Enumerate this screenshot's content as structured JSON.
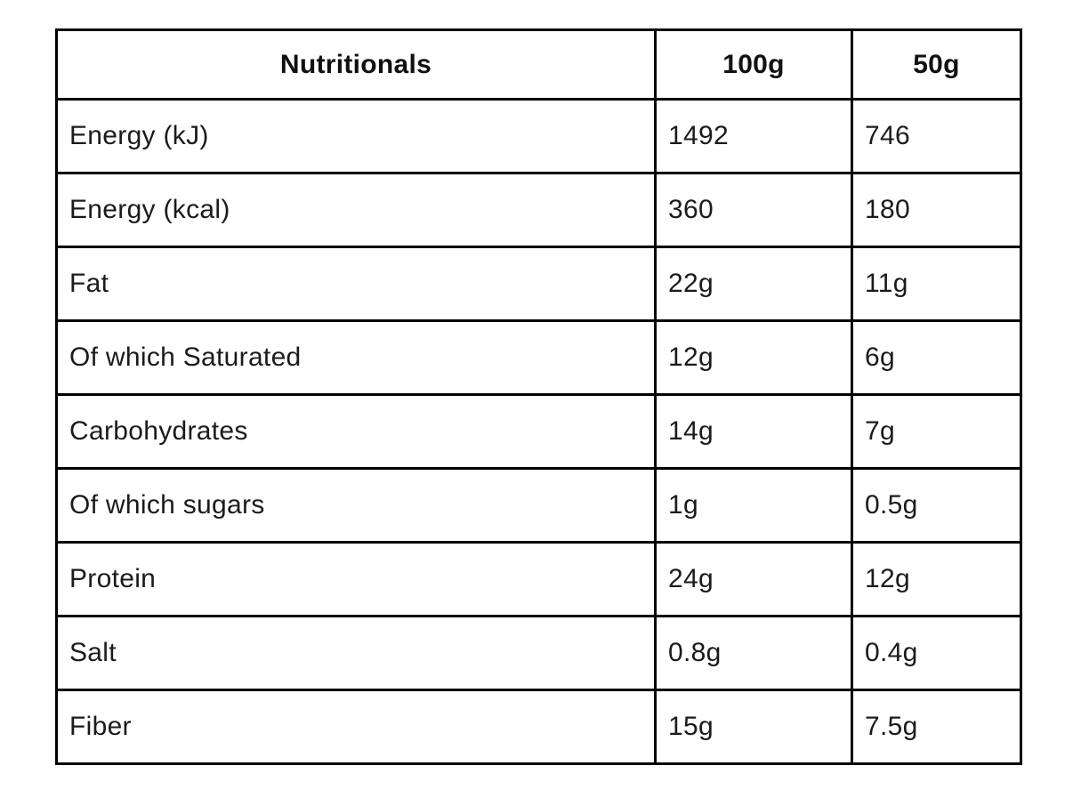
{
  "table": {
    "title": "Nutritionals",
    "columns": {
      "label": "Nutritionals",
      "per100g": "100g",
      "per50g": "50g"
    },
    "rows": [
      {
        "label": "Energy (kJ)",
        "per100g": "1492",
        "per50g": "746"
      },
      {
        "label": "Energy (kcal)",
        "per100g": "360",
        "per50g": "180"
      },
      {
        "label": "Fat",
        "per100g": "22g",
        "per50g": "11g"
      },
      {
        "label": "Of which Saturated",
        "per100g": "12g",
        "per50g": "6g"
      },
      {
        "label": "Carbohydrates",
        "per100g": "14g",
        "per50g": "7g"
      },
      {
        "label": "Of which sugars",
        "per100g": "1g",
        "per50g": "0.5g"
      },
      {
        "label": "Protein",
        "per100g": "24g",
        "per50g": "12g"
      },
      {
        "label": "Salt",
        "per100g": "0.8g",
        "per50g": "0.4g"
      },
      {
        "label": "Fiber",
        "per100g": "15g",
        "per50g": "7.5g"
      }
    ],
    "colors": {
      "border": "#000000",
      "text": "#1b1b1b",
      "background": "#ffffff"
    }
  }
}
